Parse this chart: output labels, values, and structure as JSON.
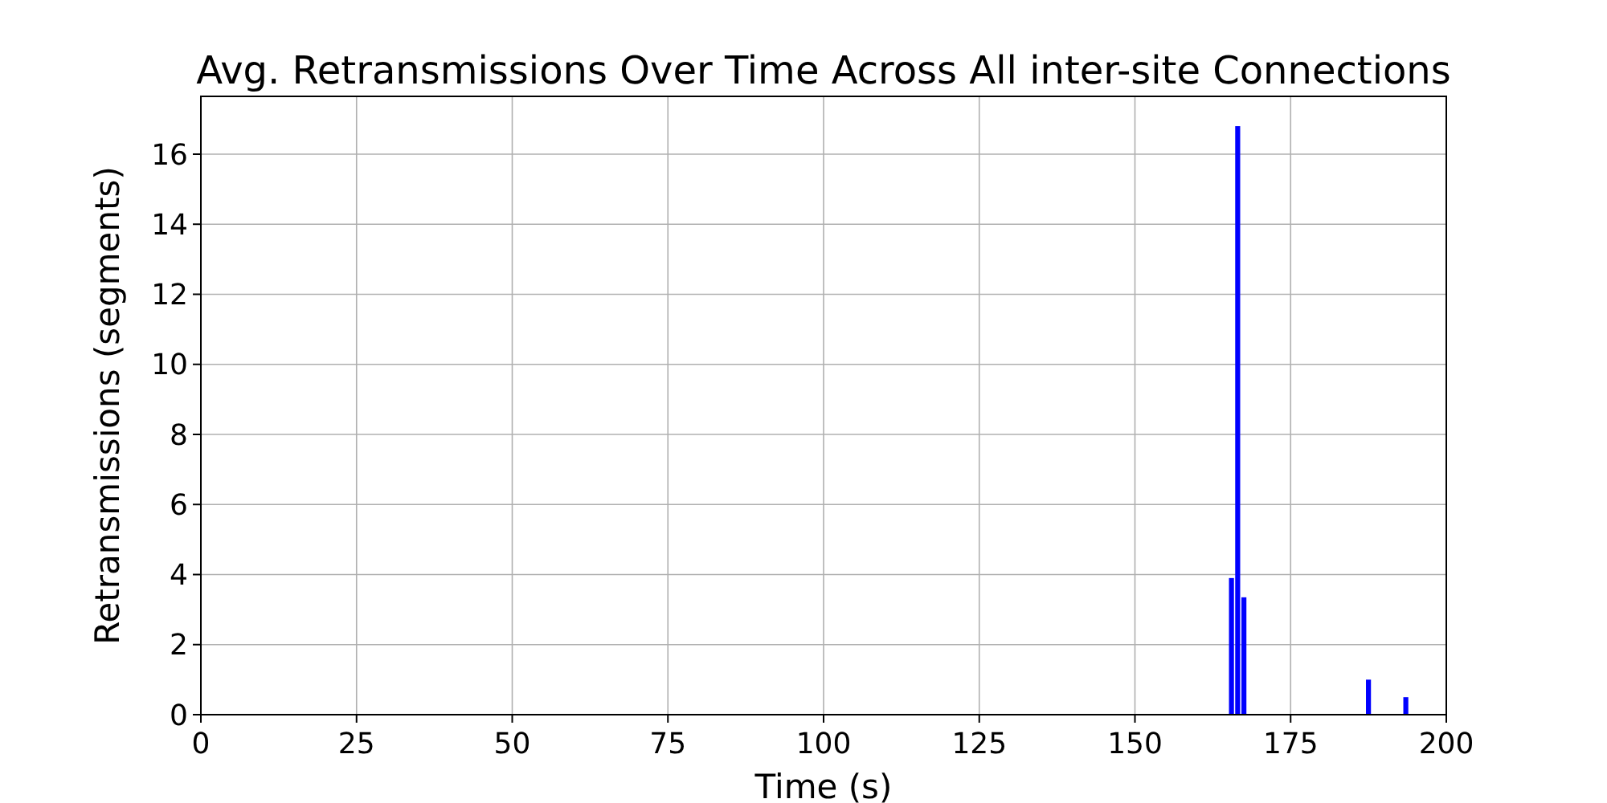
{
  "chart_data": {
    "type": "bar",
    "title": "Avg. Retransmissions Over Time Across All inter-site Connections",
    "xlabel": "Time (s)",
    "ylabel": "Retransmissions (segments)",
    "x": [
      165.5,
      166.5,
      167.5,
      187.5,
      193.5
    ],
    "values": [
      3.9,
      16.8,
      3.35,
      1.0,
      0.5
    ],
    "color": "#0000ff",
    "xlim": [
      0,
      200
    ],
    "xticks": [
      0,
      25,
      50,
      75,
      100,
      125,
      150,
      175,
      200
    ],
    "ylim": [
      0,
      17.65
    ],
    "yticks": [
      0,
      2,
      4,
      6,
      8,
      10,
      12,
      14,
      16
    ],
    "grid": true
  }
}
